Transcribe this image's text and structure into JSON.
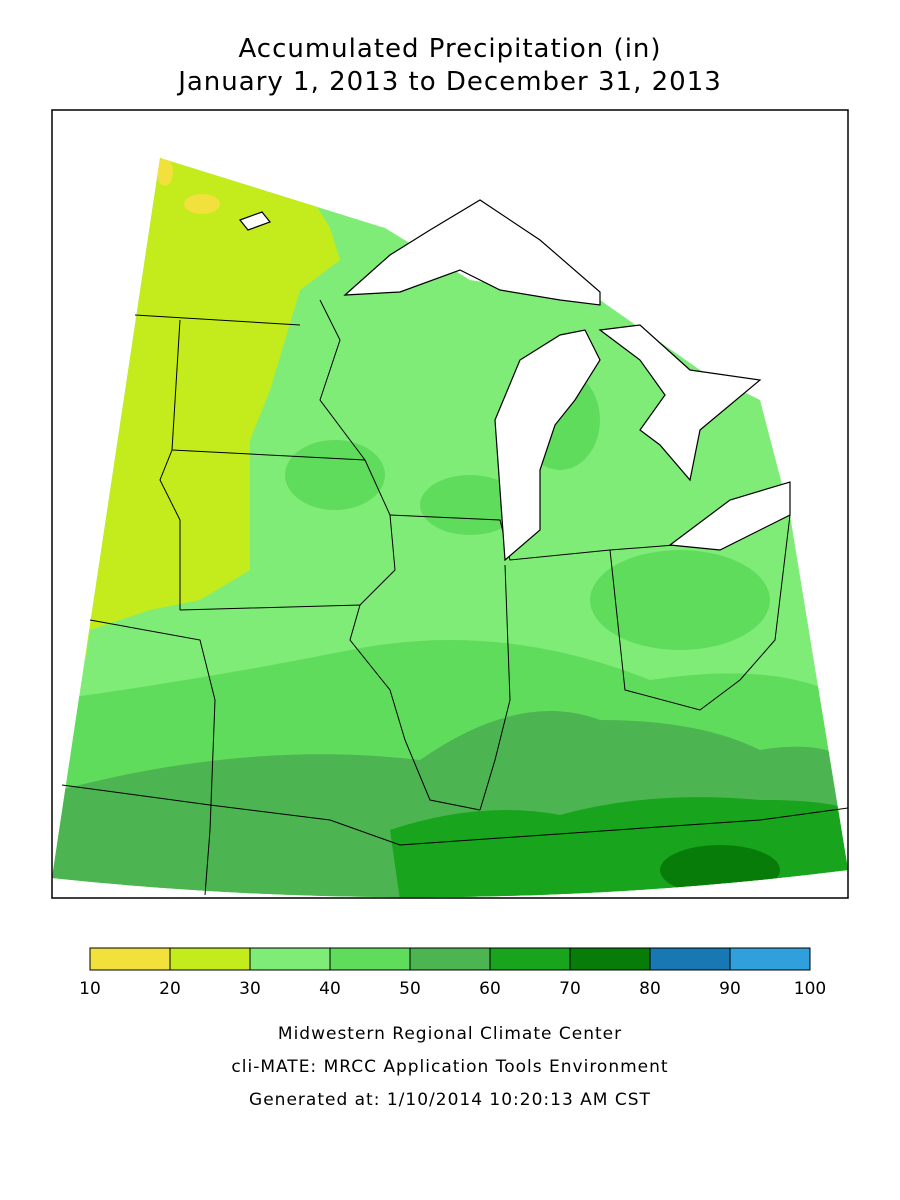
{
  "header": {
    "title": "Accumulated Precipitation (in)",
    "subtitle": "January 1, 2013 to December 31, 2013"
  },
  "legend": {
    "bins": [
      10,
      20,
      30,
      40,
      50,
      60,
      70,
      80,
      90,
      100
    ],
    "colors": [
      "#f2e03c",
      "#c4ec1c",
      "#80ec78",
      "#60dc5c",
      "#4cb450",
      "#18a41c",
      "#087c08",
      "#1878b4",
      "#30a0dc"
    ]
  },
  "footer": {
    "lines": [
      "Midwestern Regional Climate Center",
      "cli-MATE: MRCC Application Tools Environment",
      "Generated at: 1/10/2014 10:20:13 AM CST"
    ]
  }
}
